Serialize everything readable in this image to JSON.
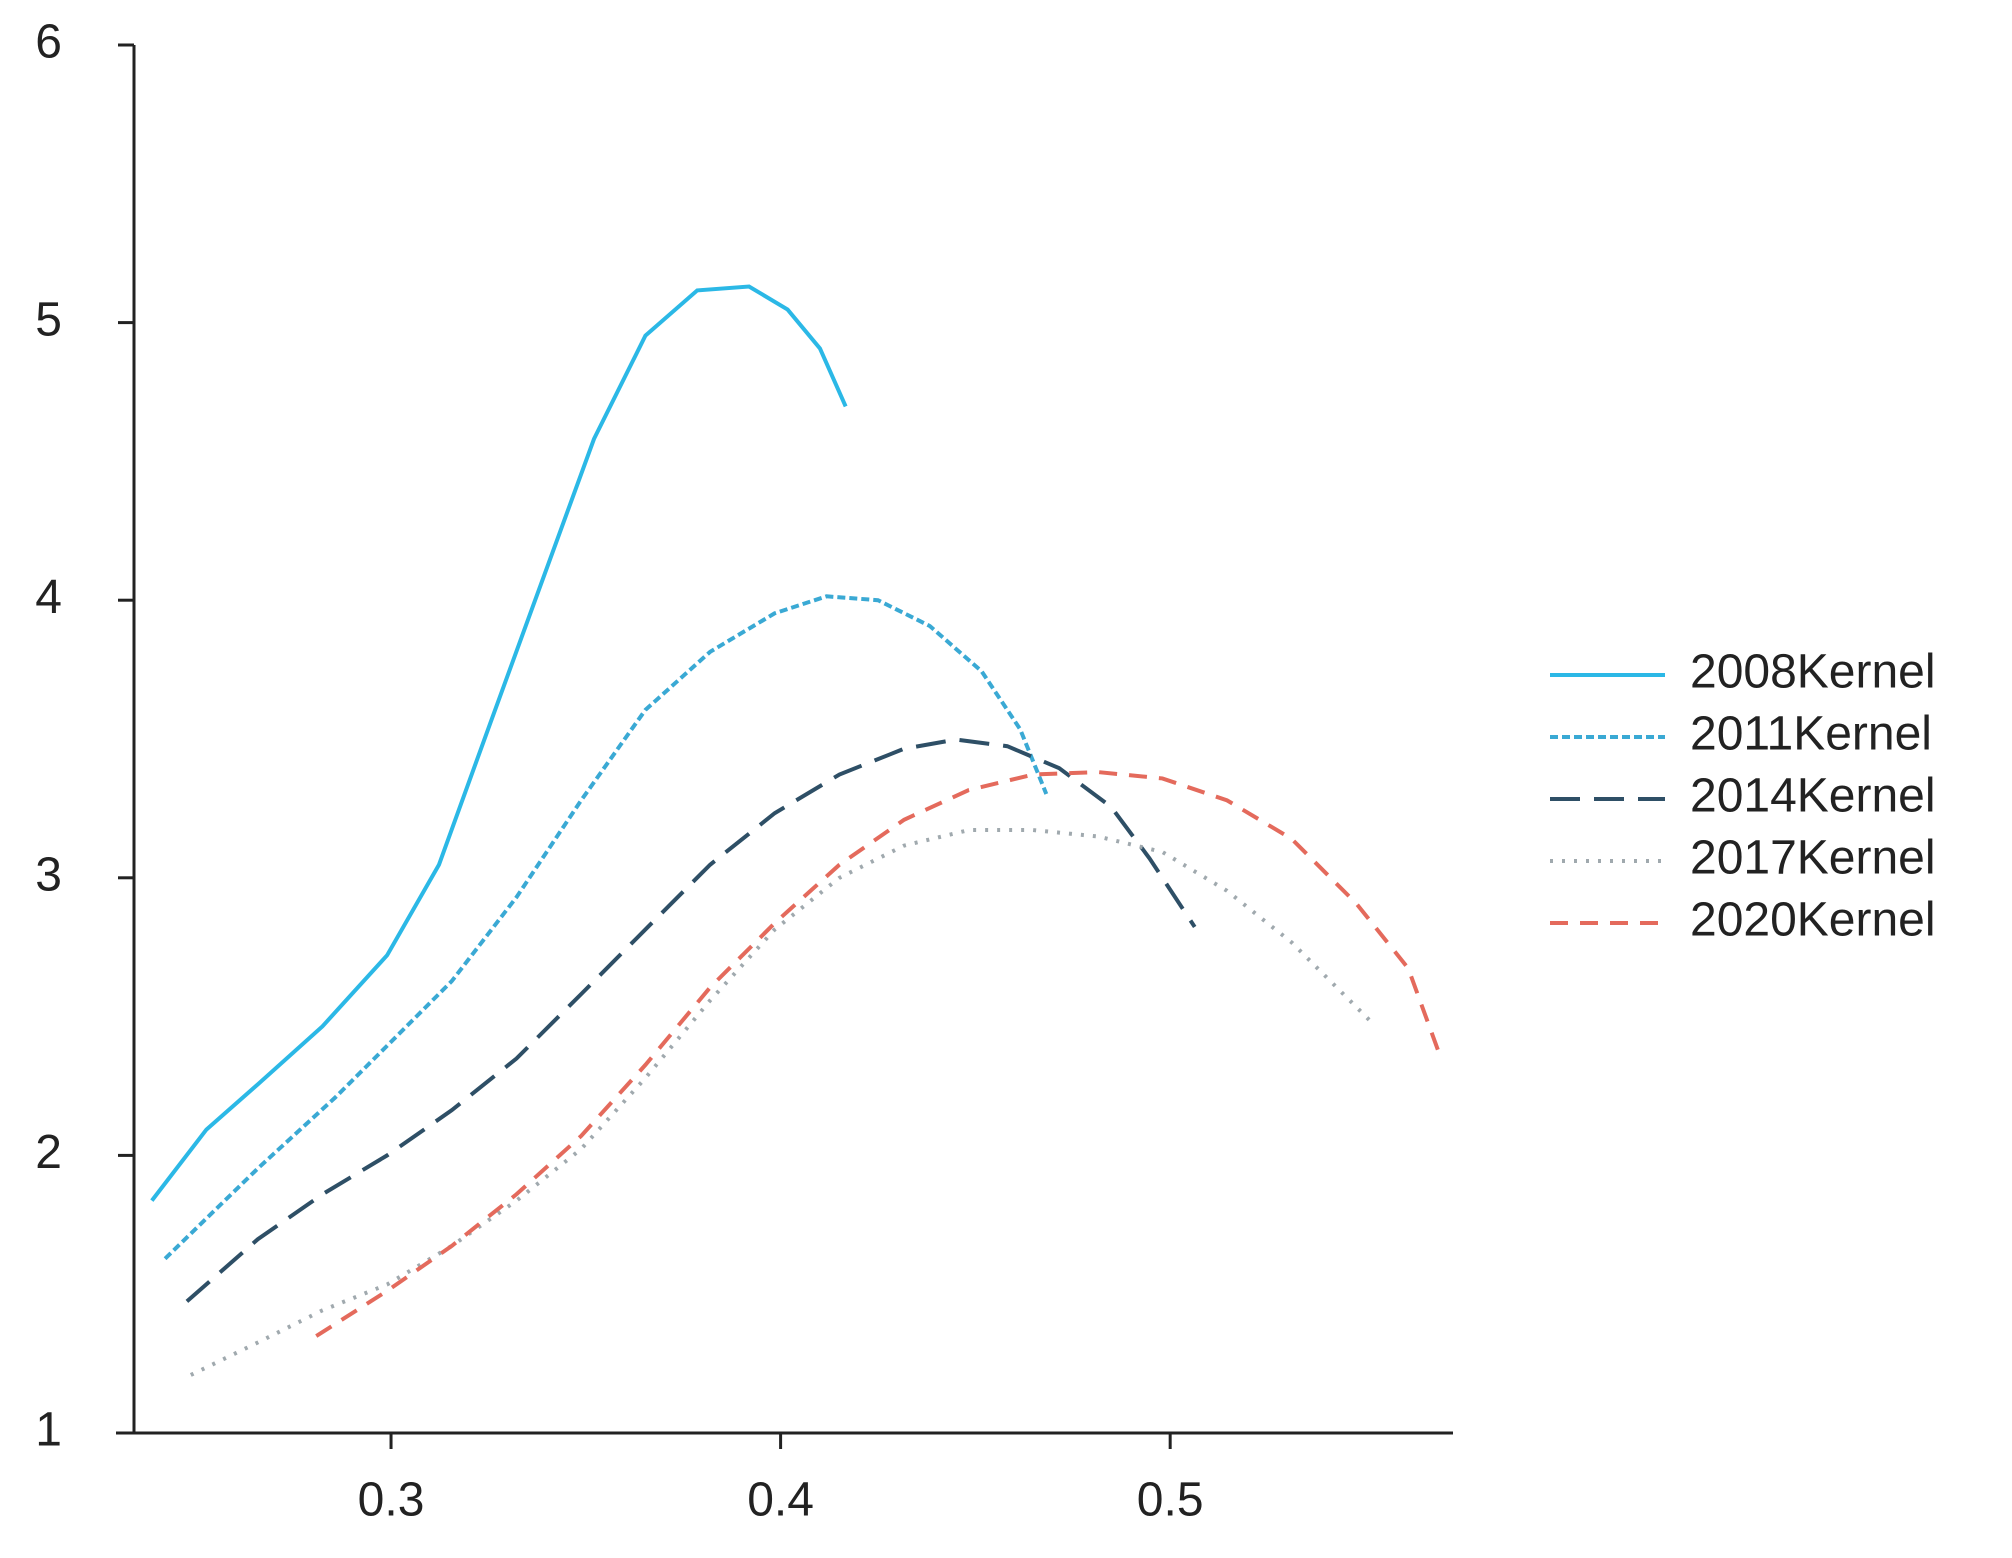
{
  "chart_data": {
    "type": "line",
    "xlim": [
      0.2294,
      0.5726
    ],
    "ylim": [
      1,
      6
    ],
    "xticks": [
      0.3,
      0.4,
      0.5
    ],
    "yticks": [
      1,
      2,
      3,
      4,
      5,
      6
    ],
    "legend": "right",
    "series": [
      {
        "name": "2008Kernel",
        "color": "#2bb8e6",
        "linestyle": "solid",
        "x": [
          0.2386,
          0.2526,
          0.2658,
          0.2824,
          0.299,
          0.3123,
          0.3255,
          0.3388,
          0.3521,
          0.3653,
          0.3786,
          0.3919,
          0.4018,
          0.4101,
          0.4167
        ],
        "values": [
          1.837,
          2.093,
          2.256,
          2.465,
          2.721,
          3.047,
          3.558,
          4.07,
          4.581,
          4.953,
          5.116,
          5.13,
          5.047,
          4.907,
          4.698
        ]
      },
      {
        "name": "2011Kernel",
        "color": "#3aa9d4",
        "linestyle": "shortdash",
        "x": [
          0.242,
          0.2658,
          0.2857,
          0.299,
          0.3156,
          0.3322,
          0.3488,
          0.3653,
          0.3819,
          0.3985,
          0.4118,
          0.425,
          0.4383,
          0.4516,
          0.4615,
          0.4682
        ],
        "values": [
          1.628,
          1.953,
          2.209,
          2.395,
          2.628,
          2.93,
          3.279,
          3.605,
          3.814,
          3.953,
          4.014,
          4.0,
          3.907,
          3.744,
          3.535,
          3.302
        ]
      },
      {
        "name": "2014Kernel",
        "color": "#2e4f66",
        "linestyle": "longdash",
        "x": [
          0.2476,
          0.2658,
          0.2824,
          0.299,
          0.3156,
          0.3322,
          0.3488,
          0.3653,
          0.3819,
          0.3985,
          0.4151,
          0.4317,
          0.445,
          0.4582,
          0.4715,
          0.4848,
          0.4947,
          0.5063
        ],
        "values": [
          1.474,
          1.698,
          1.86,
          2.0,
          2.163,
          2.349,
          2.581,
          2.814,
          3.047,
          3.233,
          3.372,
          3.465,
          3.498,
          3.474,
          3.395,
          3.256,
          3.07,
          2.823
        ]
      },
      {
        "name": "2017Kernel",
        "color": "#a0a9ae",
        "linestyle": "dotted",
        "x": [
          0.2486,
          0.2658,
          0.2824,
          0.299,
          0.3156,
          0.3322,
          0.3488,
          0.3653,
          0.3819,
          0.3985,
          0.4151,
          0.4317,
          0.4483,
          0.4648,
          0.4814,
          0.498,
          0.5146,
          0.5312,
          0.5511
        ],
        "values": [
          1.209,
          1.326,
          1.442,
          1.535,
          1.674,
          1.837,
          2.023,
          2.279,
          2.558,
          2.814,
          3.0,
          3.116,
          3.172,
          3.172,
          3.149,
          3.093,
          2.953,
          2.767,
          2.488
        ]
      },
      {
        "name": "2020Kernel",
        "color": "#e46a5c",
        "linestyle": "dash",
        "x": [
          0.2808,
          0.299,
          0.3156,
          0.3322,
          0.3488,
          0.3653,
          0.3819,
          0.3985,
          0.4151,
          0.4317,
          0.4483,
          0.4648,
          0.4814,
          0.498,
          0.5146,
          0.5312,
          0.5478,
          0.5611,
          0.5693
        ],
        "values": [
          1.349,
          1.512,
          1.674,
          1.86,
          2.07,
          2.326,
          2.605,
          2.837,
          3.047,
          3.209,
          3.316,
          3.372,
          3.381,
          3.358,
          3.279,
          3.14,
          2.907,
          2.674,
          2.358
        ]
      }
    ]
  }
}
